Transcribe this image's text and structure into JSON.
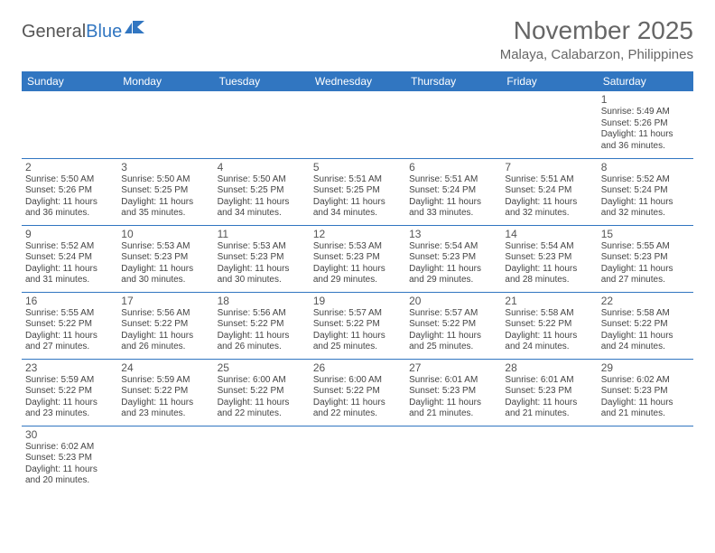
{
  "logo": {
    "word1": "General",
    "word2": "Blue"
  },
  "title": "November 2025",
  "location": "Malaya, Calabarzon, Philippines",
  "colors": {
    "header_bg": "#3176c1",
    "header_text": "#ffffff",
    "text": "#444444",
    "title_text": "#666666",
    "border": "#3176c1",
    "background": "#ffffff"
  },
  "layout": {
    "columns": 7,
    "rows": 6,
    "cell_font_size_pt": 7.5,
    "header_font_size_pt": 9,
    "title_font_size_pt": 21
  },
  "weekdays": [
    "Sunday",
    "Monday",
    "Tuesday",
    "Wednesday",
    "Thursday",
    "Friday",
    "Saturday"
  ],
  "weeks": [
    [
      null,
      null,
      null,
      null,
      null,
      null,
      {
        "day": "1",
        "sunrise": "Sunrise: 5:49 AM",
        "sunset": "Sunset: 5:26 PM",
        "daylight": "Daylight: 11 hours and 36 minutes."
      }
    ],
    [
      {
        "day": "2",
        "sunrise": "Sunrise: 5:50 AM",
        "sunset": "Sunset: 5:26 PM",
        "daylight": "Daylight: 11 hours and 36 minutes."
      },
      {
        "day": "3",
        "sunrise": "Sunrise: 5:50 AM",
        "sunset": "Sunset: 5:25 PM",
        "daylight": "Daylight: 11 hours and 35 minutes."
      },
      {
        "day": "4",
        "sunrise": "Sunrise: 5:50 AM",
        "sunset": "Sunset: 5:25 PM",
        "daylight": "Daylight: 11 hours and 34 minutes."
      },
      {
        "day": "5",
        "sunrise": "Sunrise: 5:51 AM",
        "sunset": "Sunset: 5:25 PM",
        "daylight": "Daylight: 11 hours and 34 minutes."
      },
      {
        "day": "6",
        "sunrise": "Sunrise: 5:51 AM",
        "sunset": "Sunset: 5:24 PM",
        "daylight": "Daylight: 11 hours and 33 minutes."
      },
      {
        "day": "7",
        "sunrise": "Sunrise: 5:51 AM",
        "sunset": "Sunset: 5:24 PM",
        "daylight": "Daylight: 11 hours and 32 minutes."
      },
      {
        "day": "8",
        "sunrise": "Sunrise: 5:52 AM",
        "sunset": "Sunset: 5:24 PM",
        "daylight": "Daylight: 11 hours and 32 minutes."
      }
    ],
    [
      {
        "day": "9",
        "sunrise": "Sunrise: 5:52 AM",
        "sunset": "Sunset: 5:24 PM",
        "daylight": "Daylight: 11 hours and 31 minutes."
      },
      {
        "day": "10",
        "sunrise": "Sunrise: 5:53 AM",
        "sunset": "Sunset: 5:23 PM",
        "daylight": "Daylight: 11 hours and 30 minutes."
      },
      {
        "day": "11",
        "sunrise": "Sunrise: 5:53 AM",
        "sunset": "Sunset: 5:23 PM",
        "daylight": "Daylight: 11 hours and 30 minutes."
      },
      {
        "day": "12",
        "sunrise": "Sunrise: 5:53 AM",
        "sunset": "Sunset: 5:23 PM",
        "daylight": "Daylight: 11 hours and 29 minutes."
      },
      {
        "day": "13",
        "sunrise": "Sunrise: 5:54 AM",
        "sunset": "Sunset: 5:23 PM",
        "daylight": "Daylight: 11 hours and 29 minutes."
      },
      {
        "day": "14",
        "sunrise": "Sunrise: 5:54 AM",
        "sunset": "Sunset: 5:23 PM",
        "daylight": "Daylight: 11 hours and 28 minutes."
      },
      {
        "day": "15",
        "sunrise": "Sunrise: 5:55 AM",
        "sunset": "Sunset: 5:23 PM",
        "daylight": "Daylight: 11 hours and 27 minutes."
      }
    ],
    [
      {
        "day": "16",
        "sunrise": "Sunrise: 5:55 AM",
        "sunset": "Sunset: 5:22 PM",
        "daylight": "Daylight: 11 hours and 27 minutes."
      },
      {
        "day": "17",
        "sunrise": "Sunrise: 5:56 AM",
        "sunset": "Sunset: 5:22 PM",
        "daylight": "Daylight: 11 hours and 26 minutes."
      },
      {
        "day": "18",
        "sunrise": "Sunrise: 5:56 AM",
        "sunset": "Sunset: 5:22 PM",
        "daylight": "Daylight: 11 hours and 26 minutes."
      },
      {
        "day": "19",
        "sunrise": "Sunrise: 5:57 AM",
        "sunset": "Sunset: 5:22 PM",
        "daylight": "Daylight: 11 hours and 25 minutes."
      },
      {
        "day": "20",
        "sunrise": "Sunrise: 5:57 AM",
        "sunset": "Sunset: 5:22 PM",
        "daylight": "Daylight: 11 hours and 25 minutes."
      },
      {
        "day": "21",
        "sunrise": "Sunrise: 5:58 AM",
        "sunset": "Sunset: 5:22 PM",
        "daylight": "Daylight: 11 hours and 24 minutes."
      },
      {
        "day": "22",
        "sunrise": "Sunrise: 5:58 AM",
        "sunset": "Sunset: 5:22 PM",
        "daylight": "Daylight: 11 hours and 24 minutes."
      }
    ],
    [
      {
        "day": "23",
        "sunrise": "Sunrise: 5:59 AM",
        "sunset": "Sunset: 5:22 PM",
        "daylight": "Daylight: 11 hours and 23 minutes."
      },
      {
        "day": "24",
        "sunrise": "Sunrise: 5:59 AM",
        "sunset": "Sunset: 5:22 PM",
        "daylight": "Daylight: 11 hours and 23 minutes."
      },
      {
        "day": "25",
        "sunrise": "Sunrise: 6:00 AM",
        "sunset": "Sunset: 5:22 PM",
        "daylight": "Daylight: 11 hours and 22 minutes."
      },
      {
        "day": "26",
        "sunrise": "Sunrise: 6:00 AM",
        "sunset": "Sunset: 5:22 PM",
        "daylight": "Daylight: 11 hours and 22 minutes."
      },
      {
        "day": "27",
        "sunrise": "Sunrise: 6:01 AM",
        "sunset": "Sunset: 5:23 PM",
        "daylight": "Daylight: 11 hours and 21 minutes."
      },
      {
        "day": "28",
        "sunrise": "Sunrise: 6:01 AM",
        "sunset": "Sunset: 5:23 PM",
        "daylight": "Daylight: 11 hours and 21 minutes."
      },
      {
        "day": "29",
        "sunrise": "Sunrise: 6:02 AM",
        "sunset": "Sunset: 5:23 PM",
        "daylight": "Daylight: 11 hours and 21 minutes."
      }
    ],
    [
      {
        "day": "30",
        "sunrise": "Sunrise: 6:02 AM",
        "sunset": "Sunset: 5:23 PM",
        "daylight": "Daylight: 11 hours and 20 minutes."
      },
      null,
      null,
      null,
      null,
      null,
      null
    ]
  ]
}
